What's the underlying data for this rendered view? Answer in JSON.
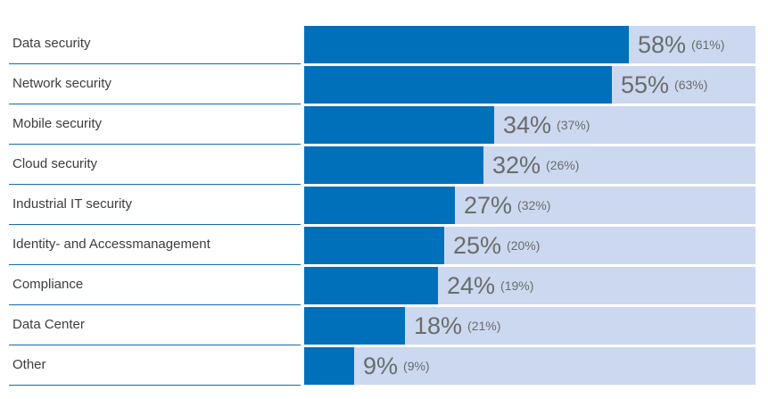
{
  "chart_data": {
    "type": "bar",
    "orientation": "horizontal",
    "xlim": [
      0,
      100
    ],
    "categories": [
      "Data security",
      "Network security",
      "Mobile security",
      "Cloud security",
      "Industrial IT security",
      "Identity- and Accessmanagement",
      "Compliance",
      "Data Center",
      "Other"
    ],
    "series": [
      {
        "values": [
          58,
          55,
          34,
          32,
          27,
          25,
          24,
          18,
          9
        ],
        "labels": [
          "58%",
          "55%",
          "34%",
          "32%",
          "27%",
          "25%",
          "24%",
          "18%",
          "9%"
        ]
      },
      {
        "values": [
          61,
          63,
          37,
          26,
          32,
          20,
          19,
          21,
          9
        ],
        "labels": [
          "(61%)",
          "(63%)",
          "(37%)",
          "(26%)",
          "(32%)",
          "(20%)",
          "(19%)",
          "(21%)",
          "(9%)"
        ]
      }
    ],
    "colors": {
      "bar": "#0070ba",
      "track": "#ccd8ef",
      "label_text": "#3d3d3d",
      "value_text": "#6b6b6b",
      "divider": "#1a6aa6"
    }
  }
}
